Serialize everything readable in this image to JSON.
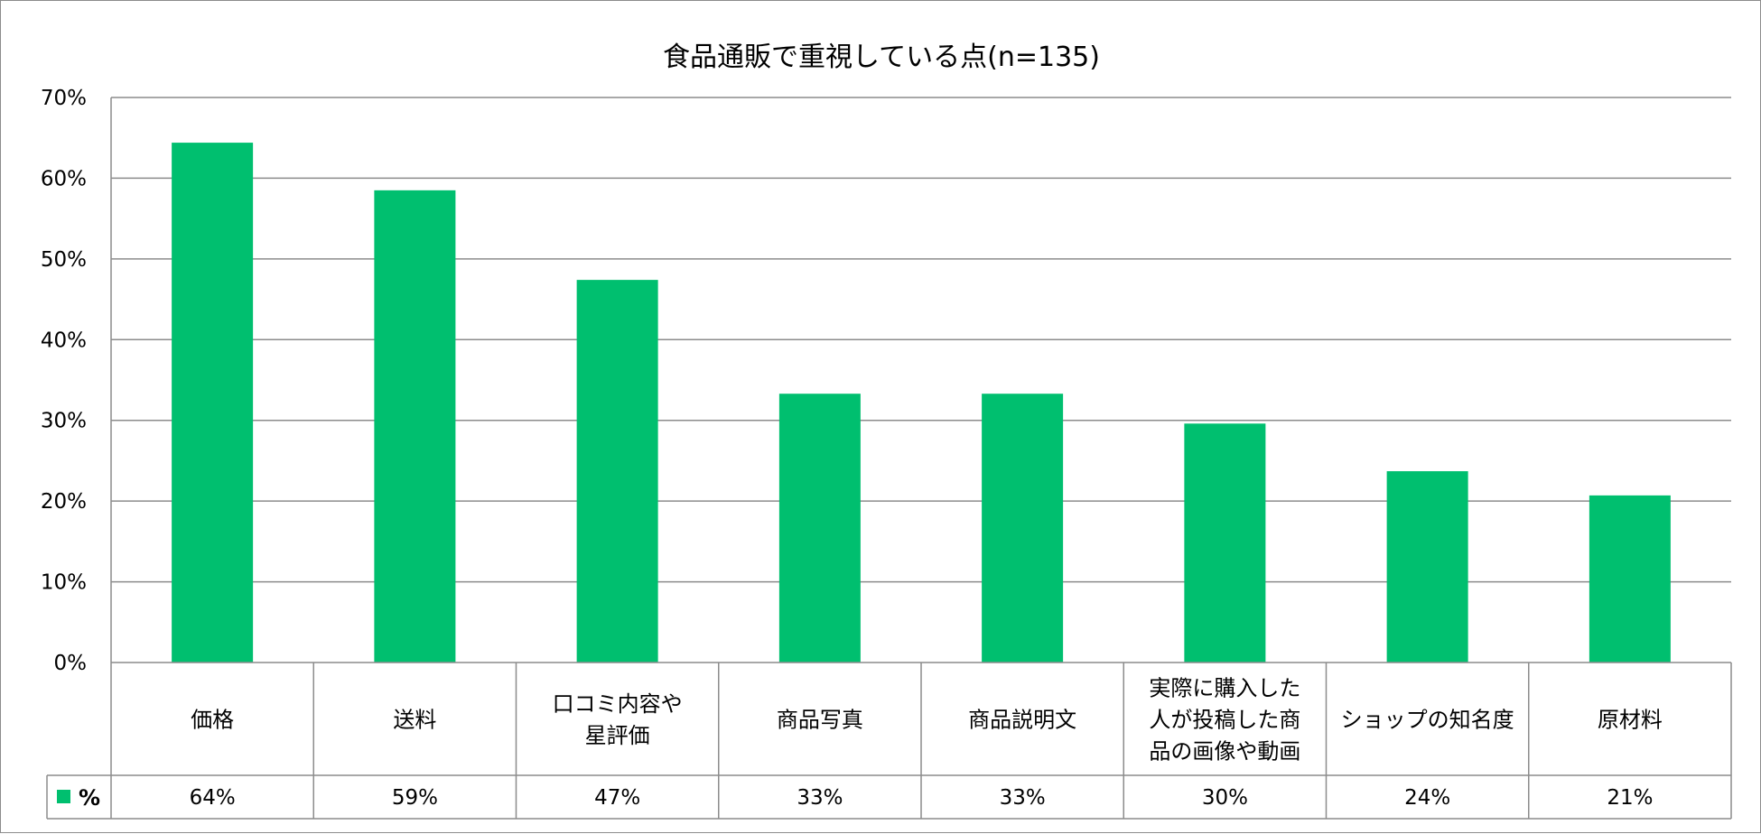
{
  "chart_data": {
    "type": "bar",
    "title": "食品通販で重視している点(n=135)",
    "categories": [
      [
        "価格"
      ],
      [
        "送料"
      ],
      [
        "口コミ内容や",
        "星評価"
      ],
      [
        "商品写真"
      ],
      [
        "商品説明文"
      ],
      [
        "実際に購入した",
        "人が投稿した商",
        "品の画像や動画"
      ],
      [
        "ショップの知名度"
      ],
      [
        "原材料"
      ]
    ],
    "series": [
      {
        "name": "%",
        "values": [
          64.4,
          58.5,
          47.4,
          33.3,
          33.3,
          29.6,
          23.7,
          20.7
        ],
        "labels": [
          "64%",
          "59%",
          "47%",
          "33%",
          "33%",
          "30%",
          "24%",
          "21%"
        ],
        "color": "#00BF6F"
      }
    ],
    "ylim": [
      0,
      70
    ],
    "yticks": [
      "0%",
      "10%",
      "20%",
      "30%",
      "40%",
      "50%",
      "60%",
      "70%"
    ],
    "grid": true,
    "legend": "data-table"
  }
}
